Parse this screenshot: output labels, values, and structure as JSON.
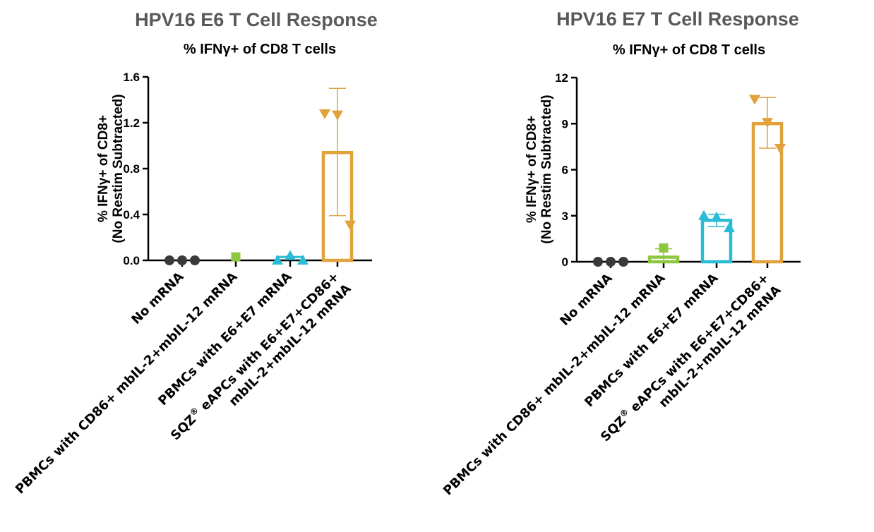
{
  "colors": {
    "no_mrna": "#3a3a3a",
    "cd86_il": "#8dc63f",
    "pbmc_e6e7": "#29bcd4",
    "sqz": "#e2a23b",
    "title": "#595959"
  },
  "chart_data": [
    {
      "type": "bar",
      "title": "HPV16 E6 T Cell Response",
      "subtitle": "% IFNγ+ of CD8 T cells",
      "ylabel": [
        "% IFNγ+ of CD8+",
        "(No Restim Subtracted)"
      ],
      "ylim": [
        0,
        1.6
      ],
      "yticks": [
        "0.0",
        "0.4",
        "0.8",
        "1.2",
        "1.6"
      ],
      "categories": [
        [
          "No mRNA"
        ],
        [
          "PBMCs with CD86+ mbIL-2+mbIL-12 mRNA"
        ],
        [
          "PBMCs with E6+E7 mRNA"
        ],
        [
          "SQZ® eAPCs with E6+E7+CD86+",
          "mbIL-2+mbIL-12 mRNA"
        ]
      ],
      "series": [
        {
          "name": "No mRNA",
          "marker": "circle",
          "color": "no_mrna",
          "bar": null,
          "error": null,
          "points": [
            0.0,
            0.0,
            0.0
          ]
        },
        {
          "name": "PBMCs with CD86+ mbIL-2+mbIL-12 mRNA",
          "marker": "square",
          "color": "cd86_il",
          "bar": null,
          "error": null,
          "points": [
            0.03
          ]
        },
        {
          "name": "PBMCs with E6+E7 mRNA",
          "marker": "triangle-up",
          "color": "pbmc_e6e7",
          "bar": 0.03,
          "error": null,
          "points": [
            0.0,
            0.04,
            0.0
          ]
        },
        {
          "name": "SQZ® eAPCs with E6+E7+CD86+ mbIL-2+mbIL-12 mRNA",
          "marker": "triangle-down",
          "color": "sqz",
          "bar": 0.94,
          "error": [
            0.39,
            1.5
          ],
          "points": [
            1.28,
            1.27,
            0.31
          ]
        }
      ]
    },
    {
      "type": "bar",
      "title": "HPV16 E7 T Cell Response",
      "subtitle": "% IFNγ+ of CD8 T cells",
      "ylabel": [
        "% IFNγ+ of CD8+",
        "(No Restim Subtracted)"
      ],
      "ylim": [
        0,
        12
      ],
      "yticks": [
        "0",
        "3",
        "6",
        "9",
        "12"
      ],
      "categories": [
        [
          "No mRNA"
        ],
        [
          "PBMCs with CD86+ mbIL-2+mbIL-12 mRNA"
        ],
        [
          "PBMCs with E6+E7 mRNA"
        ],
        [
          "SQZ® eAPCs with E6+E7+CD86+",
          "mbIL-2+mbIL-12 mRNA"
        ]
      ],
      "series": [
        {
          "name": "No mRNA",
          "marker": "circle",
          "color": "no_mrna",
          "bar": null,
          "error": null,
          "points": [
            0.0,
            0.0,
            0.0
          ]
        },
        {
          "name": "PBMCs with CD86+ mbIL-2+mbIL-12 mRNA",
          "marker": "square",
          "color": "cd86_il",
          "bar": 0.3,
          "error": [
            0.0,
            0.85
          ],
          "points": [
            0.9
          ]
        },
        {
          "name": "PBMCs with E6+E7 mRNA",
          "marker": "triangle-up",
          "color": "pbmc_e6e7",
          "bar": 2.7,
          "error": [
            2.3,
            3.1
          ],
          "points": [
            3.0,
            2.9,
            2.2
          ]
        },
        {
          "name": "SQZ® eAPCs with E6+E7+CD86+ mbIL-2+mbIL-12 mRNA",
          "marker": "triangle-down",
          "color": "sqz",
          "bar": 9.0,
          "error": [
            7.4,
            10.7
          ],
          "points": [
            10.6,
            9.1,
            7.4
          ]
        }
      ]
    }
  ]
}
